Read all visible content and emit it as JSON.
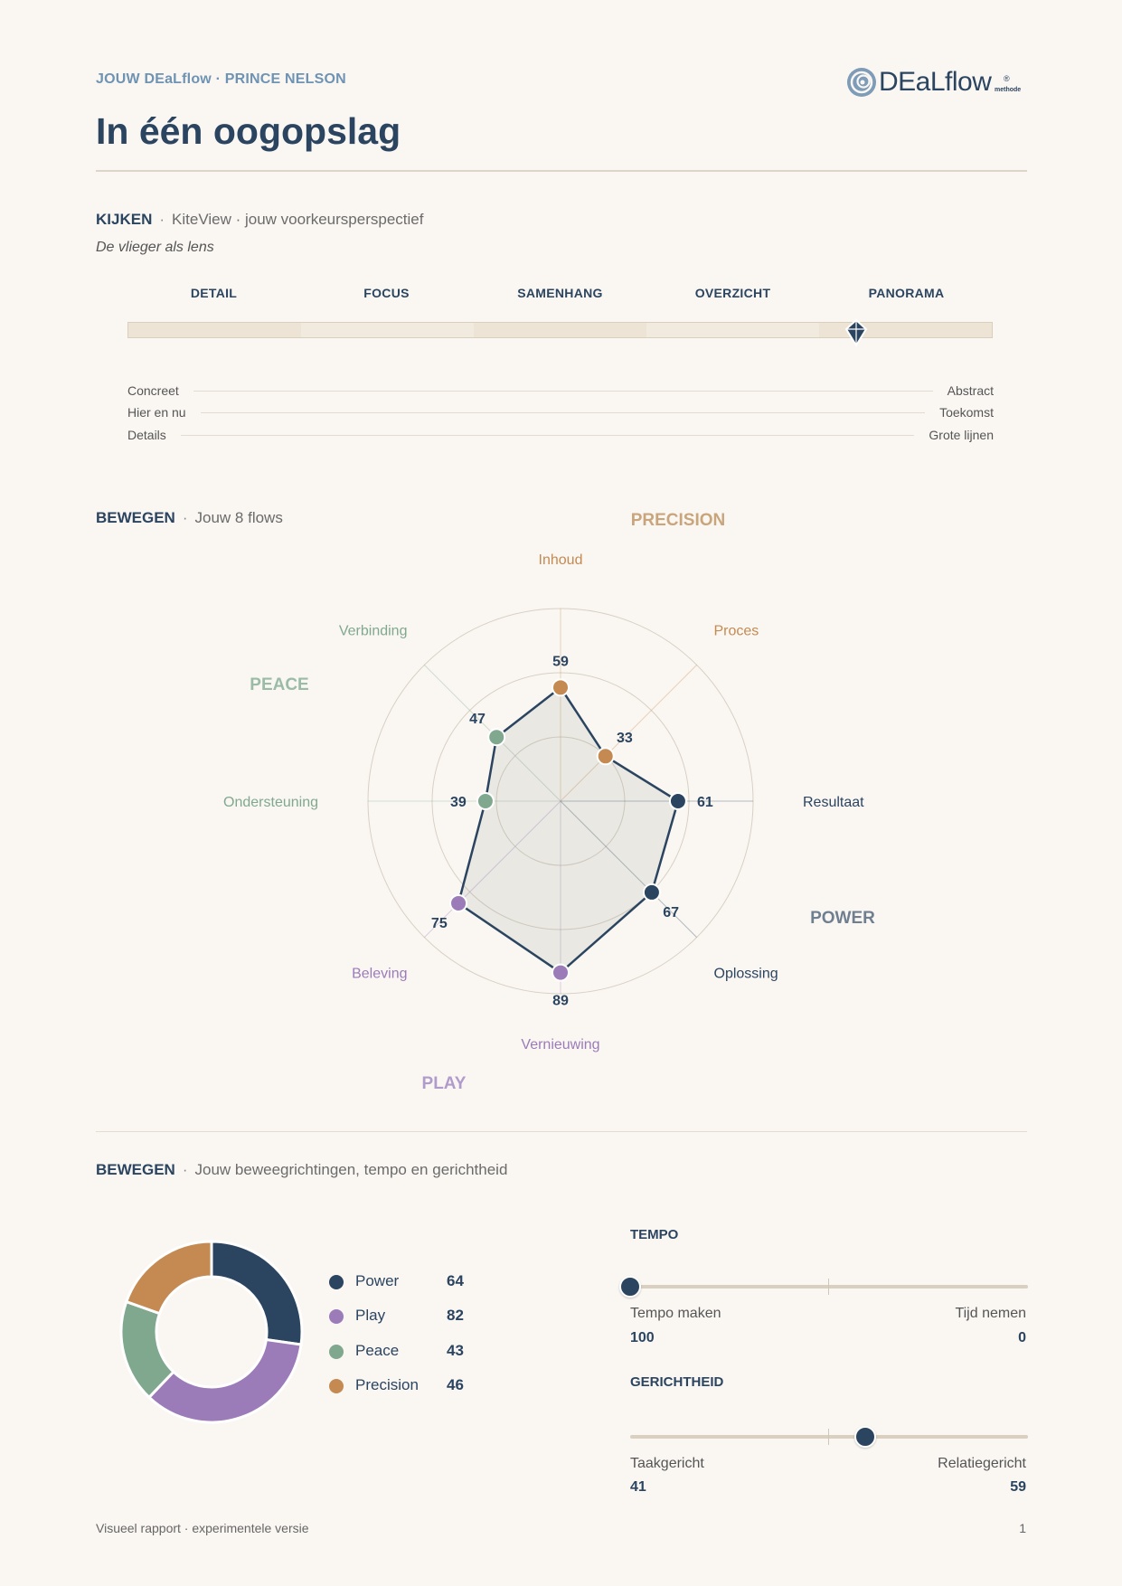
{
  "header": {
    "kicker": "JOUW DEaLflow · PRINCE NELSON",
    "title": "In één oogopslag",
    "logo_text": "DEaLflow",
    "logo_reg": "®",
    "logo_sub": "methode"
  },
  "kijken": {
    "heading": "KIJKEN",
    "sep": "·",
    "subtitle": "KiteView · jouw voorkeursperspectief",
    "tagline": "De vlieger als lens",
    "levels": [
      "DETAIL",
      "FOCUS",
      "SAMENHANG",
      "OVERZICHT",
      "PANORAMA"
    ],
    "selected_level": "PANORAMA",
    "scales": [
      {
        "left": "Concreet",
        "right": "Abstract"
      },
      {
        "left": "Hier en nu",
        "right": "Toekomst"
      },
      {
        "left": "Details",
        "right": "Grote lijnen"
      }
    ]
  },
  "flows": {
    "heading": "BEWEGEN",
    "sep": "·",
    "subtitle": "Jouw 8 flows",
    "groups": {
      "precision": "PRECISION",
      "peace": "PEACE",
      "power": "POWER",
      "play": "PLAY"
    },
    "colors": {
      "power": "#2b4460",
      "play": "#9b7bb8",
      "peace": "#80a88e",
      "precision": "#c48a52"
    }
  },
  "chart_data": {
    "type": "radar",
    "axes": [
      {
        "name": "Inhoud",
        "value": 59,
        "group": "precision"
      },
      {
        "name": "Proces",
        "value": 33,
        "group": "precision"
      },
      {
        "name": "Resultaat",
        "value": 61,
        "group": "power"
      },
      {
        "name": "Oplossing",
        "value": 67,
        "group": "power"
      },
      {
        "name": "Vernieuwing",
        "value": 89,
        "group": "play"
      },
      {
        "name": "Beleving",
        "value": 75,
        "group": "play"
      },
      {
        "name": "Ondersteuning",
        "value": 39,
        "group": "peace"
      },
      {
        "name": "Verbinding",
        "value": 47,
        "group": "peace"
      }
    ],
    "range": [
      0,
      100
    ]
  },
  "richtingen": {
    "heading": "BEWEGEN",
    "sep": "·",
    "subtitle": "Jouw beweegrichtingen, tempo en gerichtheid",
    "donut": [
      {
        "name": "Power",
        "value": 64,
        "color": "#2b4460"
      },
      {
        "name": "Play",
        "value": 82,
        "color": "#9b7bb8"
      },
      {
        "name": "Peace",
        "value": 43,
        "color": "#80a88e"
      },
      {
        "name": "Precision",
        "value": 46,
        "color": "#c48a52"
      }
    ],
    "tempo": {
      "title": "TEMPO",
      "left_label": "Tempo maken",
      "right_label": "Tijd nemen",
      "left_value": "100",
      "right_value": "0",
      "level": 0.0
    },
    "gerichtheid": {
      "title": "GERICHTHEID",
      "left_label": "Taakgericht",
      "right_label": "Relatiegericht",
      "left_value": "41",
      "right_value": "59",
      "level": 0.59
    }
  },
  "footer": {
    "note": "Visueel rapport · experimentele versie",
    "page": "1"
  }
}
